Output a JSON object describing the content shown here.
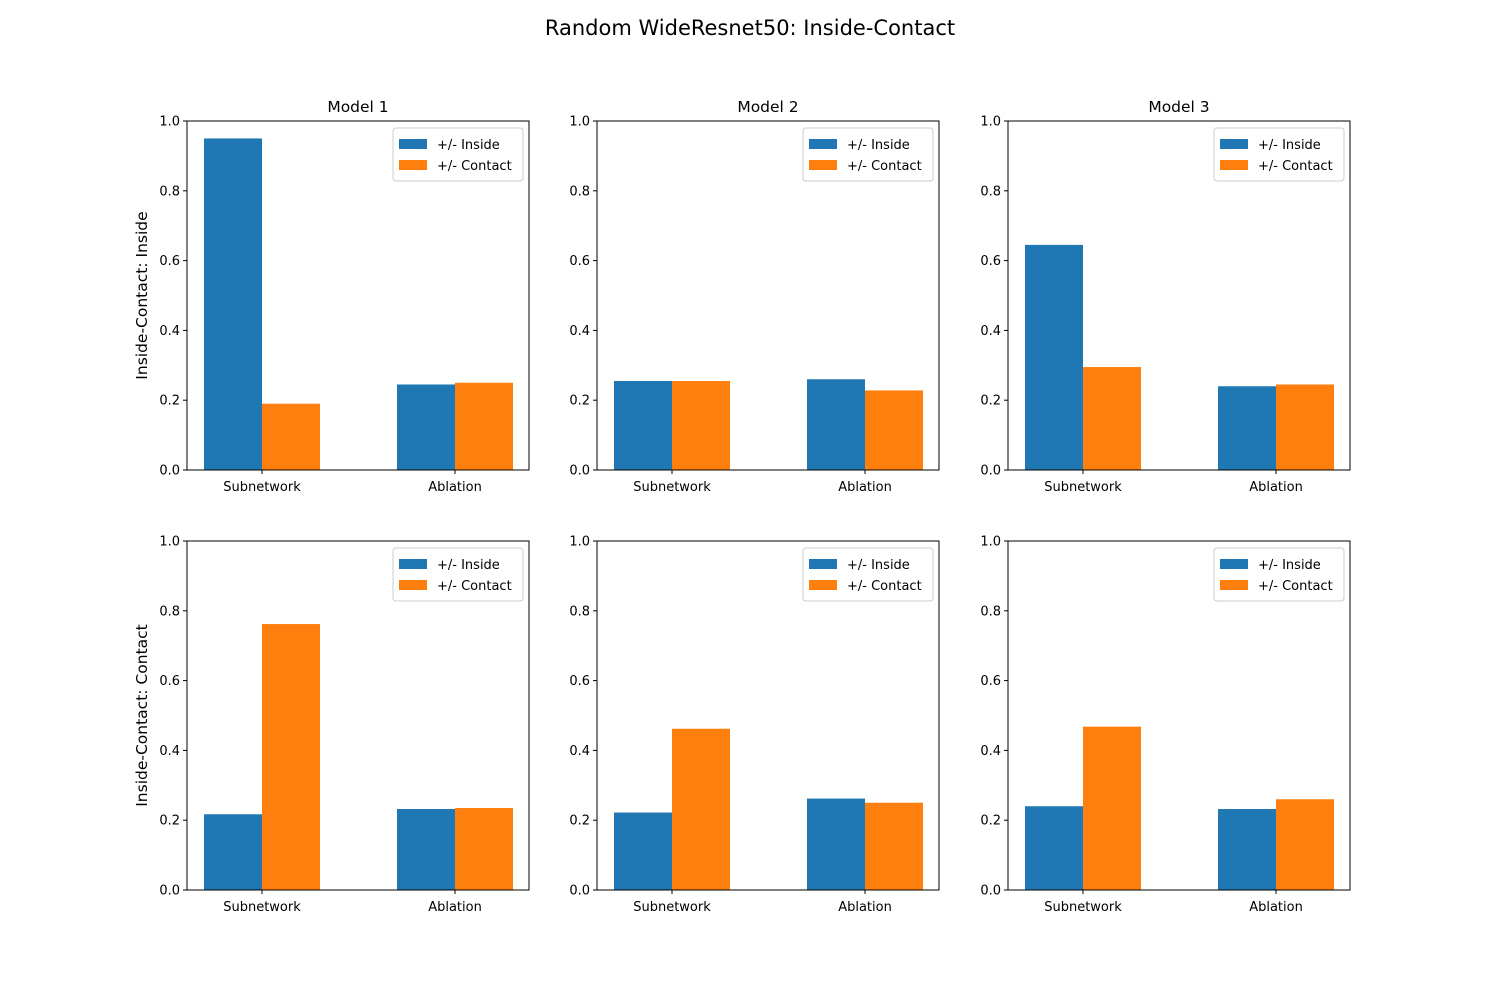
{
  "figure": {
    "title": "Random WideResnet50: Inside-Contact"
  },
  "chart_data": [
    {
      "type": "bar",
      "title": "Model 1",
      "ylabel": "Inside-Contact: Inside",
      "xlabel": "",
      "categories": [
        "Subnetwork",
        "Ablation"
      ],
      "ylim": [
        0,
        1.0
      ],
      "yticks": [
        "0.0",
        "0.2",
        "0.4",
        "0.6",
        "0.8",
        "1.0"
      ],
      "legend_position": "upper right",
      "grid": false,
      "series": [
        {
          "name": "+/- Inside",
          "color": "#1f77b4",
          "values": [
            0.95,
            0.245
          ]
        },
        {
          "name": "+/- Contact",
          "color": "#ff7f0e",
          "values": [
            0.19,
            0.25
          ]
        }
      ]
    },
    {
      "type": "bar",
      "title": "Model 2",
      "ylabel": "",
      "xlabel": "",
      "categories": [
        "Subnetwork",
        "Ablation"
      ],
      "ylim": [
        0,
        1.0
      ],
      "yticks": [
        "0.0",
        "0.2",
        "0.4",
        "0.6",
        "0.8",
        "1.0"
      ],
      "legend_position": "upper right",
      "grid": false,
      "series": [
        {
          "name": "+/- Inside",
          "color": "#1f77b4",
          "values": [
            0.255,
            0.26
          ]
        },
        {
          "name": "+/- Contact",
          "color": "#ff7f0e",
          "values": [
            0.255,
            0.228
          ]
        }
      ]
    },
    {
      "type": "bar",
      "title": "Model 3",
      "ylabel": "",
      "xlabel": "",
      "categories": [
        "Subnetwork",
        "Ablation"
      ],
      "ylim": [
        0,
        1.0
      ],
      "yticks": [
        "0.0",
        "0.2",
        "0.4",
        "0.6",
        "0.8",
        "1.0"
      ],
      "legend_position": "upper right",
      "grid": false,
      "series": [
        {
          "name": "+/- Inside",
          "color": "#1f77b4",
          "values": [
            0.645,
            0.24
          ]
        },
        {
          "name": "+/- Contact",
          "color": "#ff7f0e",
          "values": [
            0.295,
            0.245
          ]
        }
      ]
    },
    {
      "type": "bar",
      "title": "",
      "ylabel": "Inside-Contact: Contact",
      "xlabel": "",
      "categories": [
        "Subnetwork",
        "Ablation"
      ],
      "ylim": [
        0,
        1.0
      ],
      "yticks": [
        "0.0",
        "0.2",
        "0.4",
        "0.6",
        "0.8",
        "1.0"
      ],
      "legend_position": "upper right",
      "grid": false,
      "series": [
        {
          "name": "+/- Inside",
          "color": "#1f77b4",
          "values": [
            0.217,
            0.232
          ]
        },
        {
          "name": "+/- Contact",
          "color": "#ff7f0e",
          "values": [
            0.762,
            0.235
          ]
        }
      ]
    },
    {
      "type": "bar",
      "title": "",
      "ylabel": "",
      "xlabel": "",
      "categories": [
        "Subnetwork",
        "Ablation"
      ],
      "ylim": [
        0,
        1.0
      ],
      "yticks": [
        "0.0",
        "0.2",
        "0.4",
        "0.6",
        "0.8",
        "1.0"
      ],
      "legend_position": "upper right",
      "grid": false,
      "series": [
        {
          "name": "+/- Inside",
          "color": "#1f77b4",
          "values": [
            0.222,
            0.262
          ]
        },
        {
          "name": "+/- Contact",
          "color": "#ff7f0e",
          "values": [
            0.462,
            0.25
          ]
        }
      ]
    },
    {
      "type": "bar",
      "title": "",
      "ylabel": "",
      "xlabel": "",
      "categories": [
        "Subnetwork",
        "Ablation"
      ],
      "ylim": [
        0,
        1.0
      ],
      "yticks": [
        "0.0",
        "0.2",
        "0.4",
        "0.6",
        "0.8",
        "1.0"
      ],
      "legend_position": "upper right",
      "grid": false,
      "series": [
        {
          "name": "+/- Inside",
          "color": "#1f77b4",
          "values": [
            0.24,
            0.232
          ]
        },
        {
          "name": "+/- Contact",
          "color": "#ff7f0e",
          "values": [
            0.468,
            0.26
          ]
        }
      ]
    }
  ]
}
